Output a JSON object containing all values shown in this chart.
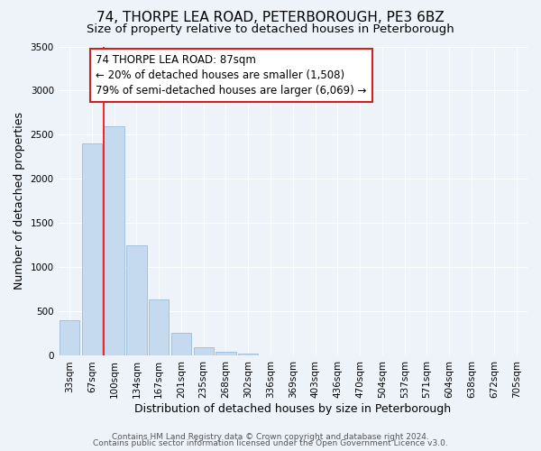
{
  "title": "74, THORPE LEA ROAD, PETERBOROUGH, PE3 6BZ",
  "subtitle": "Size of property relative to detached houses in Peterborough",
  "xlabel": "Distribution of detached houses by size in Peterborough",
  "ylabel": "Number of detached properties",
  "bar_color": "#c5d9ef",
  "bar_edge_color": "#9bbcd8",
  "background_color": "#eef2f9",
  "plot_bg_color": "#eef2f9",
  "grid_color": "#ffffff",
  "categories": [
    "33sqm",
    "67sqm",
    "100sqm",
    "134sqm",
    "167sqm",
    "201sqm",
    "235sqm",
    "268sqm",
    "302sqm",
    "336sqm",
    "369sqm",
    "403sqm",
    "436sqm",
    "470sqm",
    "504sqm",
    "537sqm",
    "571sqm",
    "604sqm",
    "638sqm",
    "672sqm",
    "705sqm"
  ],
  "bar_values": [
    400,
    2400,
    2600,
    1250,
    640,
    260,
    100,
    50,
    30,
    5,
    0,
    0,
    0,
    0,
    0,
    0,
    0,
    0,
    0,
    0,
    0
  ],
  "red_line_x": 1.55,
  "ylim": [
    0,
    3500
  ],
  "yticks": [
    0,
    500,
    1000,
    1500,
    2000,
    2500,
    3000,
    3500
  ],
  "annotation_text": "74 THORPE LEA ROAD: 87sqm\n← 20% of detached houses are smaller (1,508)\n79% of semi-detached houses are larger (6,069) →",
  "footer_line1": "Contains HM Land Registry data © Crown copyright and database right 2024.",
  "footer_line2": "Contains public sector information licensed under the Open Government Licence v3.0.",
  "title_fontsize": 11,
  "subtitle_fontsize": 9.5,
  "annotation_fontsize": 8.5,
  "tick_fontsize": 7.5,
  "ylabel_fontsize": 9,
  "xlabel_fontsize": 9,
  "footer_fontsize": 6.5
}
